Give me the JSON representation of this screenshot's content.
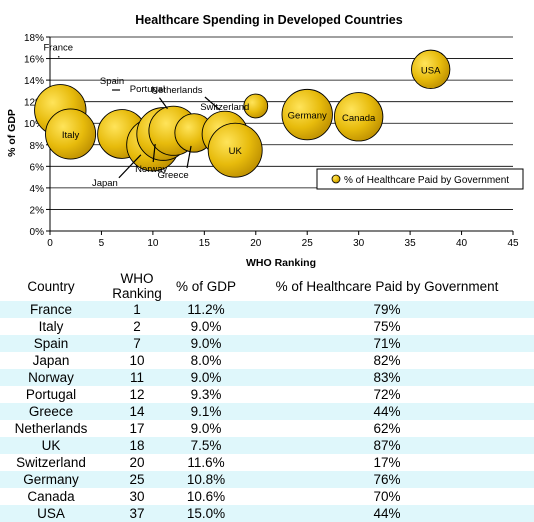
{
  "chart_data": {
    "type": "scatter",
    "subtype": "bubble",
    "title": "Healthcare Spending in Developed Countries",
    "xlabel": "WHO Ranking",
    "ylabel": "% of GDP",
    "xlim": [
      0,
      45
    ],
    "ylim": [
      0,
      18
    ],
    "x_ticks": [
      "0",
      "5",
      "10",
      "15",
      "20",
      "25",
      "30",
      "35",
      "40",
      "45"
    ],
    "y_ticks": [
      "0%",
      "2%",
      "4%",
      "6%",
      "8%",
      "10%",
      "12%",
      "14%",
      "16%",
      "18%"
    ],
    "grid": "horizontal",
    "legend_position": "right",
    "bubble_color": "#e0b408",
    "series": [
      {
        "name": "% of Healthcare Paid by Government",
        "points": [
          {
            "label": "France",
            "x": 1,
            "y": 11.2,
            "size": 79
          },
          {
            "label": "Italy",
            "x": 2,
            "y": 9.0,
            "size": 75
          },
          {
            "label": "Spain",
            "x": 7,
            "y": 9.0,
            "size": 71
          },
          {
            "label": "Japan",
            "x": 10,
            "y": 8.0,
            "size": 82
          },
          {
            "label": "Norway",
            "x": 11,
            "y": 9.0,
            "size": 83
          },
          {
            "label": "Portugal",
            "x": 12,
            "y": 9.3,
            "size": 72
          },
          {
            "label": "Greece",
            "x": 14,
            "y": 9.1,
            "size": 44
          },
          {
            "label": "Netherlands",
            "x": 17,
            "y": 9.0,
            "size": 62
          },
          {
            "label": "UK",
            "x": 18,
            "y": 7.5,
            "size": 87
          },
          {
            "label": "Switzerland",
            "x": 20,
            "y": 11.6,
            "size": 17
          },
          {
            "label": "Germany",
            "x": 25,
            "y": 10.8,
            "size": 76
          },
          {
            "label": "Canada",
            "x": 30,
            "y": 10.6,
            "size": 70
          },
          {
            "label": "USA",
            "x": 37,
            "y": 15.0,
            "size": 44
          }
        ]
      }
    ]
  },
  "table": {
    "headers": [
      "Country",
      "WHO Ranking",
      "% of GDP",
      "% of Healthcare Paid by Government"
    ],
    "rows": [
      [
        "France",
        "1",
        "11.2%",
        "79%"
      ],
      [
        "Italy",
        "2",
        "9.0%",
        "75%"
      ],
      [
        "Spain",
        "7",
        "9.0%",
        "71%"
      ],
      [
        "Japan",
        "10",
        "8.0%",
        "82%"
      ],
      [
        "Norway",
        "11",
        "9.0%",
        "83%"
      ],
      [
        "Portugal",
        "12",
        "9.3%",
        "72%"
      ],
      [
        "Greece",
        "14",
        "9.1%",
        "44%"
      ],
      [
        "Netherlands",
        "17",
        "9.0%",
        "62%"
      ],
      [
        "UK",
        "18",
        "7.5%",
        "87%"
      ],
      [
        "Switzerland",
        "20",
        "11.6%",
        "17%"
      ],
      [
        "Germany",
        "25",
        "10.8%",
        "76%"
      ],
      [
        "Canada",
        "30",
        "10.6%",
        "70%"
      ],
      [
        "USA",
        "37",
        "15.0%",
        "44%"
      ]
    ]
  }
}
